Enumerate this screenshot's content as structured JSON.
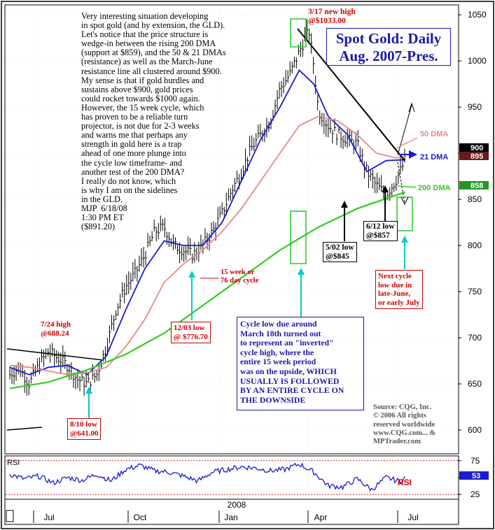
{
  "colors": {
    "price": "#000000",
    "dma21": "#1a1ad0",
    "dma50": "#e38a8a",
    "dma200": "#33cc22",
    "rsi": "#1a1ad0",
    "annotation_red": "#cc0000",
    "annotation_blue": "#1a1aa6",
    "cycle_arrow": "#00cccc",
    "highlight_box": "#22cc22"
  },
  "chart_data": [
    {
      "type": "line",
      "title": "Spot Gold: Daily Aug. 2007-Pres.",
      "title_lines": [
        "Spot Gold: Daily",
        "Aug. 2007-Pres."
      ],
      "ylim": [
        575,
        1060
      ],
      "y_ticks": [
        600,
        650,
        700,
        750,
        800,
        850,
        900,
        950,
        1000,
        1050
      ],
      "x_tick_labels": [
        "Jul",
        "Oct",
        "Jan",
        "Apr",
        "Jul"
      ],
      "year_label": "2008",
      "grid": true,
      "price_tags": [
        "900",
        "895",
        "858"
      ],
      "price_series": [
        {
          "name": "price",
          "x": [
            0,
            10,
            20,
            26,
            31,
            40,
            50,
            60,
            70,
            80,
            90,
            100,
            110,
            120,
            130,
            140,
            150,
            160,
            170,
            180,
            190,
            200,
            210,
            220,
            230,
            240,
            250,
            260,
            270,
            280,
            290,
            300,
            310,
            315,
            320,
            330,
            340,
            350,
            360,
            370,
            380,
            390,
            400,
            410
          ],
          "y": [
            660,
            668,
            650,
            662,
            672,
            685,
            678,
            670,
            655,
            650,
            660,
            690,
            730,
            755,
            770,
            790,
            815,
            820,
            800,
            795,
            790,
            800,
            815,
            835,
            860,
            880,
            905,
            920,
            935,
            970,
            985,
            1010,
            1033,
            995,
            945,
            930,
            920,
            915,
            910,
            880,
            865,
            855,
            870,
            893
          ]
        }
      ],
      "series": [
        {
          "name": "21 DMA",
          "x": [
            0,
            20,
            40,
            60,
            80,
            100,
            120,
            140,
            160,
            180,
            200,
            220,
            240,
            260,
            280,
            300,
            315,
            330,
            350,
            370,
            390,
            410
          ],
          "y": [
            668,
            660,
            668,
            670,
            660,
            680,
            730,
            775,
            805,
            800,
            800,
            825,
            870,
            915,
            950,
            990,
            975,
            940,
            920,
            880,
            892,
            893
          ]
        },
        {
          "name": "50 DMA",
          "x": [
            0,
            20,
            40,
            60,
            80,
            100,
            120,
            140,
            160,
            180,
            200,
            220,
            240,
            260,
            280,
            300,
            320,
            340,
            360,
            380,
            400,
            410
          ],
          "y": [
            670,
            668,
            664,
            660,
            662,
            668,
            690,
            720,
            760,
            780,
            795,
            815,
            840,
            870,
            900,
            930,
            940,
            935,
            920,
            900,
            895,
            896
          ]
        },
        {
          "name": "200 DMA",
          "x": [
            0,
            40,
            80,
            120,
            160,
            200,
            240,
            280,
            320,
            360,
            410
          ],
          "y": [
            645,
            652,
            665,
            682,
            705,
            735,
            765,
            795,
            820,
            840,
            858
          ]
        }
      ],
      "annotations": [
        {
          "text_lines": [
            "Very interesting situation developing",
            "in spot gold (and by extension, the GLD).",
            "Let's notice that the price structure is",
            "wedge-in between the rising 200 DMA",
            "(support at $859), and the 50 & 21 DMAs",
            "(resistance) as well as the March-June",
            "resistance line all clustered around $900.",
            "My sense is that if gold hurdles and",
            "sustains above $900, gold prices",
            "could rocket towards $1000 again.",
            "However, the 15 week cycle, which",
            "has proven to be a reliable turn",
            "projector, is not due for 2-3 weeks",
            "and warns me that perhaps any",
            "strength in gold here is a trap",
            "ahead of one more plunge into",
            "the cycle low timeframe- and",
            "another test of the 200 DMA?",
            "I really do not know, which",
            "is why I am on the sidelines",
            "in the GLD.",
            "MJP  6/18/08",
            "1:30 PM ET",
            "($891.20)"
          ]
        },
        {
          "text_lines": [
            "3/17 new high",
            "@$1033.00"
          ]
        },
        {
          "text_lines": [
            "7/24 high",
            "@688.24"
          ]
        },
        {
          "text_lines": [
            "8/10 low",
            "@641.00"
          ]
        },
        {
          "text_lines": [
            "12/03 low",
            "@ $776.70"
          ]
        },
        {
          "text_lines": [
            "15 week or",
            "76 day cycle"
          ]
        },
        {
          "text_lines": [
            "5/02 low",
            "@$845"
          ]
        },
        {
          "text_lines": [
            "6/12 low",
            "@$857"
          ]
        },
        {
          "text_lines": [
            "Next cycle",
            "low due in",
            "late-June,",
            "or early July"
          ]
        },
        {
          "text_lines": [
            "Cycle low due around",
            "March 18th turned out",
            "to represent an \"inverted\"",
            "cycle high, where the",
            "entire 15 week period",
            "was on the upside, WHICH",
            "USUALLY IS FOLLOWED",
            "BY AN ENTIRE CYCLE ON",
            "THE DOWNSIDE"
          ]
        },
        {
          "text_lines": [
            "Source: CQG, Inc.",
            "© 2006 All rights",
            "reserved worldwide",
            "www.CQG.com... &",
            "MPTrader.com"
          ]
        }
      ],
      "legend": [
        "50 DMA",
        "21 DMA",
        "200 DMA"
      ]
    },
    {
      "type": "line",
      "title": "",
      "series": [
        {
          "name": "RSI",
          "x": [
            0,
            15,
            30,
            45,
            60,
            75,
            90,
            105,
            120,
            135,
            150,
            165,
            180,
            195,
            210,
            225,
            240,
            255,
            270,
            285,
            300,
            315,
            330,
            345,
            360,
            375,
            390,
            405,
            410
          ],
          "y": [
            55,
            48,
            52,
            42,
            50,
            46,
            55,
            45,
            62,
            68,
            60,
            58,
            52,
            45,
            58,
            62,
            66,
            64,
            60,
            62,
            70,
            58,
            38,
            36,
            48,
            32,
            50,
            44,
            50
          ]
        }
      ],
      "ylim": [
        20,
        80
      ],
      "y_ticks": [
        25,
        50,
        75
      ],
      "y_tick_labels": [
        "25",
        "75"
      ],
      "rsi_value_tag": "53",
      "panel_label": "RSI",
      "series_label": "RSI"
    }
  ]
}
